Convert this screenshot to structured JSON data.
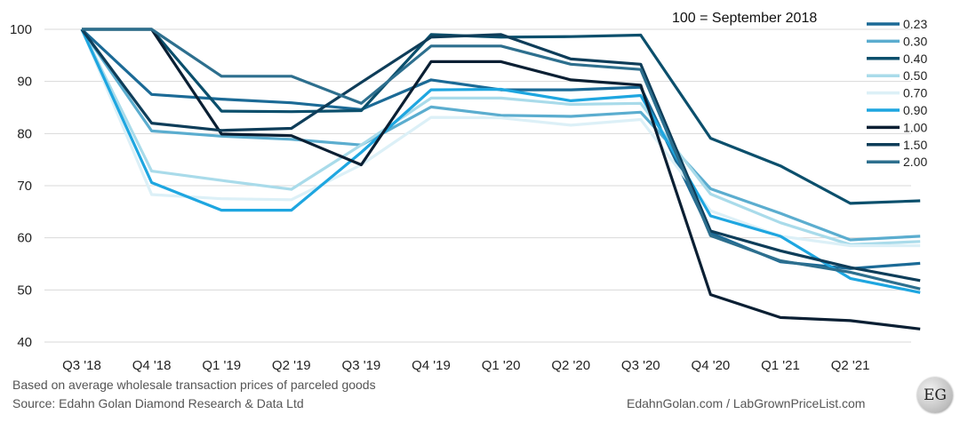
{
  "chart_data": {
    "type": "line",
    "title": "100 = September 2018",
    "xlabel": "",
    "ylabel": "",
    "ylim": [
      40,
      100
    ],
    "yticks": [
      40,
      50,
      60,
      70,
      80,
      90,
      100
    ],
    "grid": true,
    "legend_position": "top-right",
    "x": [
      0,
      1,
      2,
      3,
      4,
      5,
      6,
      7,
      8,
      9,
      10,
      11,
      12
    ],
    "xtick_labels": [
      "Q3 '18",
      "Q4 '18",
      "Q1 '19",
      "Q2 '19",
      "Q3 '19",
      "Q4 '19",
      "Q1 '20",
      "Q2 '20",
      "Q3 '20",
      "Q4 '20",
      "Q1 '21",
      "Q2 '21",
      ""
    ],
    "series": [
      {
        "name": "0.23",
        "color": "#1b6a96",
        "values": [
          100,
          87.5,
          86.6,
          85.9,
          84.6,
          90.3,
          88.4,
          88.4,
          88.9,
          60.9,
          55.4,
          54.1,
          55.1
        ]
      },
      {
        "name": "0.30",
        "color": "#5badcf",
        "values": [
          100,
          80.5,
          79.5,
          78.9,
          77.8,
          85.1,
          83.5,
          83.3,
          84.1,
          69.4,
          64.7,
          59.6,
          60.3
        ]
      },
      {
        "name": "0.40",
        "color": "#0b4f6c",
        "values": [
          100,
          100,
          84.3,
          84.2,
          84.4,
          99.0,
          98.5,
          98.6,
          98.9,
          79.1,
          73.8,
          66.6,
          67.1
        ]
      },
      {
        "name": "0.50",
        "color": "#a9dbea",
        "values": [
          100,
          72.8,
          71.0,
          69.3,
          77.8,
          86.8,
          86.8,
          85.6,
          85.8,
          68.4,
          62.9,
          58.7,
          59.3
        ]
      },
      {
        "name": "0.70",
        "color": "#dcf0f7",
        "values": [
          100,
          68.3,
          67.5,
          67.3,
          74.0,
          83.1,
          83.0,
          81.6,
          82.7,
          65.2,
          60.3,
          58.5,
          58.5
        ]
      },
      {
        "name": "0.90",
        "color": "#1ea6e0",
        "values": [
          100,
          70.6,
          65.3,
          65.3,
          76.4,
          88.4,
          88.5,
          86.3,
          87.3,
          64.2,
          60.3,
          52.2,
          49.5
        ]
      },
      {
        "name": "1.00",
        "color": "#0a1f33",
        "values": [
          100,
          100,
          79.9,
          79.6,
          74.0,
          93.8,
          93.8,
          90.3,
          89.3,
          49.1,
          44.7,
          44.1,
          42.5
        ]
      },
      {
        "name": "1.50",
        "color": "#0e3d59",
        "values": [
          100,
          82.0,
          80.6,
          81.0,
          89.8,
          98.5,
          99.0,
          94.3,
          93.3,
          61.3,
          57.5,
          54.3,
          51.8
        ]
      },
      {
        "name": "2.00",
        "color": "#2d6f8e",
        "values": [
          100,
          100,
          91.0,
          91.0,
          85.8,
          96.8,
          96.8,
          93.3,
          92.3,
          60.4,
          55.6,
          53.4,
          50.2
        ]
      }
    ]
  },
  "notes": {
    "basis": "Based on average wholesale transaction prices of parceled goods",
    "source": "Source: Edahn Golan Diamond Research & Data Ltd",
    "credit": "EdahnGolan.com / LabGrownPriceList.com",
    "logo": "EG"
  }
}
